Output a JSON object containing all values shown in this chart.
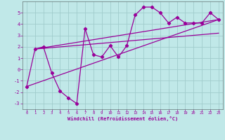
{
  "title": "",
  "xlabel": "Windchill (Refroidissement éolien,°C)",
  "ylabel": "",
  "bg_color": "#c0e8e8",
  "grid_color": "#a0cccc",
  "line_color": "#990099",
  "xlim": [
    -0.5,
    23.5
  ],
  "ylim": [
    -3.5,
    6.0
  ],
  "xticks": [
    0,
    1,
    2,
    3,
    4,
    5,
    6,
    7,
    8,
    9,
    10,
    11,
    12,
    13,
    14,
    15,
    16,
    17,
    18,
    19,
    20,
    21,
    22,
    23
  ],
  "yticks": [
    -3,
    -2,
    -1,
    0,
    1,
    2,
    3,
    4,
    5
  ],
  "series1_x": [
    0,
    1,
    2,
    3,
    4,
    5,
    6,
    7,
    8,
    9,
    10,
    11,
    12,
    13,
    14,
    15,
    16,
    17,
    18,
    19,
    20,
    21,
    22,
    23
  ],
  "series1_y": [
    -1.5,
    1.8,
    2.0,
    -0.3,
    -1.9,
    -2.5,
    -3.0,
    3.6,
    1.3,
    1.1,
    2.1,
    1.1,
    2.1,
    4.8,
    5.5,
    5.5,
    5.0,
    4.1,
    4.6,
    4.1,
    4.1,
    4.1,
    5.0,
    4.4
  ],
  "line1_x": [
    1,
    23
  ],
  "line1_y": [
    1.8,
    4.4
  ],
  "line2_x": [
    1,
    23
  ],
  "line2_y": [
    1.8,
    3.2
  ],
  "line3_x": [
    0,
    23
  ],
  "line3_y": [
    -1.5,
    4.4
  ]
}
